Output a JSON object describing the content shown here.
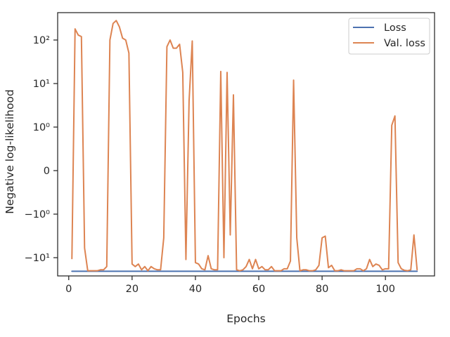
{
  "chart_data": {
    "type": "line",
    "xlabel": "Epochs",
    "ylabel": "Negative log-likelihood",
    "xlim": [
      -3.5,
      115.5
    ],
    "x_ticks": [
      0,
      20,
      40,
      60,
      80,
      100
    ],
    "x_tick_labels": [
      "0",
      "20",
      "40",
      "60",
      "80",
      "100"
    ],
    "yscale": "symlog",
    "y_ticks": [
      -10,
      -1,
      0,
      1,
      10,
      100
    ],
    "y_tick_labels": [
      "−10¹",
      "−10⁰",
      "0",
      "10⁰",
      "10¹",
      "10²"
    ],
    "legend_position": "top-right",
    "grid": false,
    "series": [
      {
        "name": "Loss",
        "color": "#4c72b0",
        "x": [
          1,
          110
        ],
        "values": [
          -20.5,
          -20.5
        ]
      },
      {
        "name": "Val. loss",
        "color": "#dd8452",
        "x": [
          1,
          2,
          3,
          4,
          5,
          6,
          7,
          8,
          9,
          10,
          11,
          12,
          13,
          14,
          15,
          16,
          17,
          18,
          19,
          20,
          21,
          22,
          23,
          24,
          25,
          26,
          27,
          28,
          29,
          30,
          31,
          32,
          33,
          34,
          35,
          36,
          37,
          38,
          39,
          40,
          41,
          42,
          43,
          44,
          45,
          46,
          47,
          48,
          49,
          50,
          51,
          52,
          53,
          54,
          55,
          56,
          57,
          58,
          59,
          60,
          61,
          62,
          63,
          64,
          65,
          66,
          67,
          68,
          69,
          70,
          71,
          72,
          73,
          74,
          75,
          76,
          77,
          78,
          79,
          80,
          81,
          82,
          83,
          84,
          85,
          86,
          87,
          88,
          89,
          90,
          91,
          92,
          93,
          94,
          95,
          96,
          97,
          98,
          99,
          100,
          101,
          102,
          103,
          104,
          105,
          106,
          107,
          108,
          109,
          110
        ],
        "values": [
          -10.5,
          180,
          130,
          120,
          -6,
          -20,
          -20,
          -20,
          -20,
          -19,
          -19,
          -16,
          100,
          240,
          280,
          200,
          110,
          100,
          50,
          -14,
          -16,
          -14,
          -19,
          -16,
          -20,
          -16,
          -18,
          -19,
          -19,
          -3.5,
          70,
          100,
          65,
          65,
          80,
          18,
          -11,
          4,
          95,
          -13,
          -14,
          -18,
          -19,
          -9,
          -18,
          -19,
          -19,
          19,
          -10,
          18,
          -3,
          5.5,
          -19,
          -20,
          -19,
          -16,
          -11,
          -18,
          -11,
          -18,
          -16,
          -19,
          -19,
          -16,
          -20,
          -20,
          -20,
          -18,
          -18,
          -12,
          12,
          -3.5,
          -20,
          -19,
          -19,
          -20,
          -20,
          -19,
          -15,
          -3.5,
          -3.2,
          -17,
          -15,
          -20,
          -20,
          -19,
          -20,
          -20,
          -20,
          -20,
          -18,
          -18,
          -20,
          -18,
          -11,
          -16,
          -14,
          -15,
          -19,
          -18,
          -18,
          1.1,
          1.8,
          -13,
          -18,
          -19.5,
          -20,
          -19,
          -3,
          -19
        ]
      }
    ]
  }
}
